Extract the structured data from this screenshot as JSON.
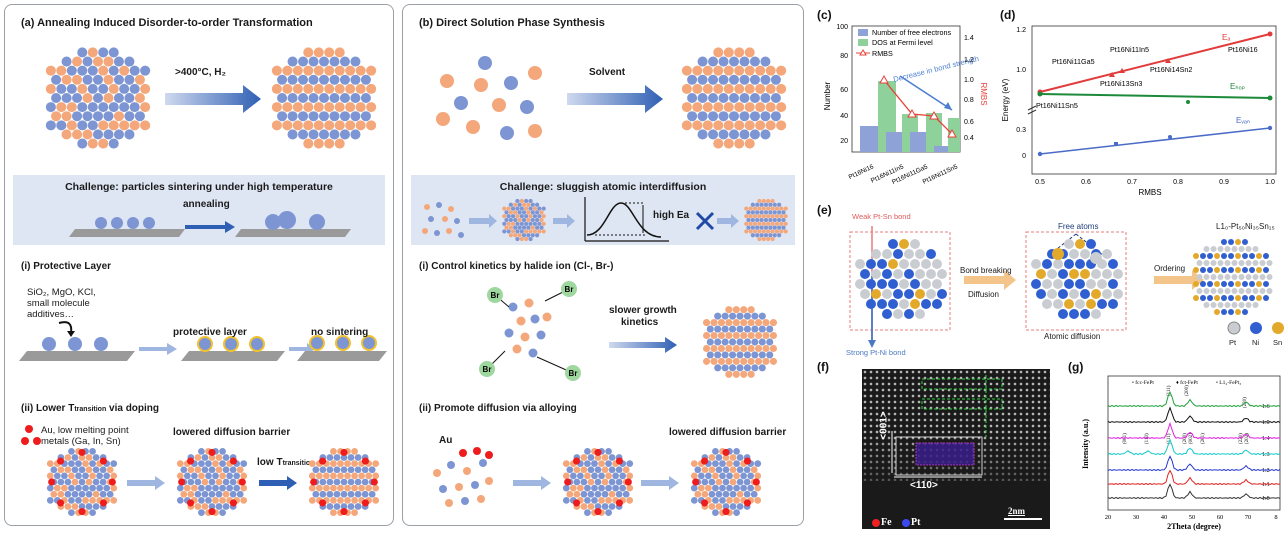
{
  "panel_a": {
    "title": "(a) Annealing Induced Disorder-to-order Transformation",
    "arrow_label": ">400°C, H₂",
    "challenge": "Challenge:  particles sintering under high temperature",
    "annealing_label": "annealing",
    "sub_i": "(i) Protective Layer",
    "additives_line1": "SiO₂, MgO, KCl,",
    "additives_line2": "small molecule",
    "additives_line3": "additives…",
    "protective_layer": "protective layer",
    "no_sintering": "no sintering",
    "sub_ii": "(ii) Lower T",
    "sub_ii_sub": "transition",
    "sub_ii_tail": " via doping",
    "dopants_line1": "Au, low melting point",
    "dopants_line2": "metals (Ga, In, Sn)",
    "lowered_barrier": "lowered diffusion barrier",
    "low_t": "low T",
    "low_t_sub": "transition"
  },
  "panel_b": {
    "title": "(b) Direct Solution Phase Synthesis",
    "solvent": "Solvent",
    "challenge": "Challenge:  sluggish atomic interdiffusion",
    "high_ea": "high Ea",
    "sub_i": "(i) Control kinetics by halide ion (Cl-, Br-)",
    "br": "Br",
    "slower_growth_line1": "slower growth",
    "slower_growth_line2": "kinetics",
    "sub_ii": "(ii) Promote diffusion via alloying",
    "au": "Au",
    "lowered_barrier": "lowered diffusion barrier"
  },
  "panel_c": {
    "label": "(c)",
    "legend": [
      "Number of free electrons",
      "DOS at Fermi level",
      "RMBS"
    ],
    "annotation": "Decrease in bond strength",
    "ylabel_left": "Number",
    "ylabel_right": "RMBS",
    "left_ticks": [
      "20",
      "40",
      "60",
      "80",
      "100"
    ],
    "right_ticks": [
      "0.4",
      "0.6",
      "0.8",
      "1.0",
      "1.2",
      "1.4"
    ],
    "categories": [
      "Pt16Ni16",
      "Pt16Ni11In5",
      "Pt16Ni11Ga5",
      "Pt16Ni11Sn5"
    ]
  },
  "panel_d": {
    "label": "(d)",
    "ylabel": "Energy (eV)",
    "xlabel": "RMBS",
    "yticks": [
      "0",
      "0.3",
      "1.0",
      "1.2"
    ],
    "xticks": [
      "0.5",
      "0.6",
      "0.7",
      "0.8",
      "0.9",
      "1.0"
    ],
    "series_labels": [
      "Eₐ",
      "Eₕₒₚ",
      "Eᵥₐₙ"
    ],
    "point_labels": [
      "Pt16Ni11Ga5",
      "Pt16Ni11In5",
      "Pt16Ni16",
      "Pt16Ni14Sn2",
      "Pt16Ni13Sn3",
      "Pt16Ni11Sn5"
    ]
  },
  "panel_e": {
    "label": "(e)",
    "weak_bond": "Weak Pt-Sn bond",
    "strong_bond": "Strong Pt-Ni bond",
    "step1_line1": "Bond breaking",
    "step1_line2": "Diffusion",
    "free_atoms": "Free atoms",
    "atomic_diffusion": "Atomic diffusion",
    "ordering": "Ordering",
    "product": "L1₀-Pt₅₀Ni₃₅Sn₁₅",
    "legend": [
      "Pt",
      "Ni",
      "Sn"
    ],
    "colors": {
      "pt": "#c9cdd2",
      "ni": "#2f5fd0",
      "sn": "#e3a92a"
    }
  },
  "panel_f": {
    "label": "(f)",
    "axis_v": "<001>",
    "axis_h": "<110>",
    "legend": [
      "Fe",
      "Pt"
    ],
    "scale": "2nm"
  },
  "panel_g": {
    "label": "(g)",
    "legend": [
      "• fcc-FePt",
      "♦ fct-FePt",
      "• L1₂-FePt₃"
    ],
    "ylabel": "Intensity (a.u.)",
    "xlabel": "2Theta (degree)",
    "xticks": [
      "20",
      "30",
      "40",
      "50",
      "60",
      "70",
      "8"
    ],
    "ratios": [
      "1:6",
      "1:5",
      "1:4",
      "1:3",
      "1:2",
      "1:1",
      "1:0"
    ],
    "peak_labels": [
      "(111)",
      "(200)",
      "(220)",
      "(001)",
      "(110)",
      "(111)",
      "(200)",
      "(002)",
      "(201)",
      "(220)",
      "(202)"
    ]
  }
}
